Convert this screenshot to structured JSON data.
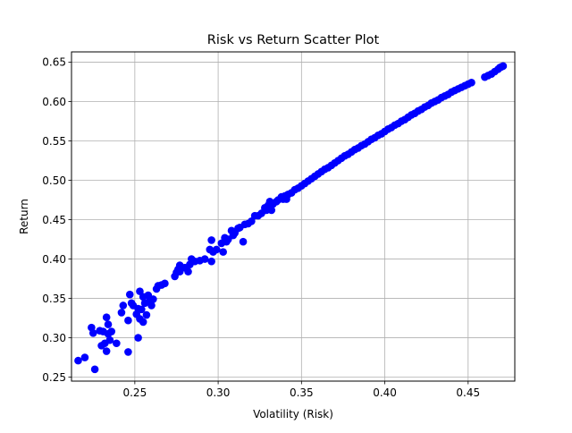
{
  "chart_data": {
    "type": "scatter",
    "title": "Risk vs Return Scatter Plot",
    "xlabel": "Volatility (Risk)",
    "ylabel": "Return",
    "xlim": [
      0.212,
      0.478
    ],
    "ylim": [
      0.245,
      0.663
    ],
    "xticks": [
      0.25,
      0.3,
      0.35,
      0.4,
      0.45
    ],
    "xtick_labels": [
      "0.25",
      "0.30",
      "0.35",
      "0.40",
      "0.45"
    ],
    "yticks": [
      0.25,
      0.3,
      0.35,
      0.4,
      0.45,
      0.5,
      0.55,
      0.6,
      0.65
    ],
    "ytick_labels": [
      "0.25",
      "0.30",
      "0.35",
      "0.40",
      "0.45",
      "0.50",
      "0.55",
      "0.60",
      "0.65"
    ],
    "grid": true,
    "marker_color": "#0000ff",
    "points": [
      [
        0.216,
        0.271
      ],
      [
        0.22,
        0.275
      ],
      [
        0.224,
        0.313
      ],
      [
        0.225,
        0.306
      ],
      [
        0.226,
        0.26
      ],
      [
        0.229,
        0.309
      ],
      [
        0.23,
        0.29
      ],
      [
        0.231,
        0.308
      ],
      [
        0.232,
        0.293
      ],
      [
        0.233,
        0.326
      ],
      [
        0.233,
        0.283
      ],
      [
        0.234,
        0.317
      ],
      [
        0.234,
        0.305
      ],
      [
        0.235,
        0.297
      ],
      [
        0.236,
        0.308
      ],
      [
        0.239,
        0.293
      ],
      [
        0.242,
        0.332
      ],
      [
        0.243,
        0.341
      ],
      [
        0.246,
        0.282
      ],
      [
        0.246,
        0.322
      ],
      [
        0.247,
        0.355
      ],
      [
        0.248,
        0.344
      ],
      [
        0.249,
        0.341
      ],
      [
        0.251,
        0.33
      ],
      [
        0.252,
        0.3
      ],
      [
        0.252,
        0.337
      ],
      [
        0.253,
        0.359
      ],
      [
        0.253,
        0.324
      ],
      [
        0.254,
        0.336
      ],
      [
        0.255,
        0.32
      ],
      [
        0.255,
        0.352
      ],
      [
        0.256,
        0.344
      ],
      [
        0.257,
        0.329
      ],
      [
        0.258,
        0.354
      ],
      [
        0.259,
        0.347
      ],
      [
        0.26,
        0.341
      ],
      [
        0.261,
        0.349
      ],
      [
        0.263,
        0.362
      ],
      [
        0.264,
        0.366
      ],
      [
        0.266,
        0.367
      ],
      [
        0.268,
        0.369
      ],
      [
        0.274,
        0.378
      ],
      [
        0.275,
        0.383
      ],
      [
        0.276,
        0.387
      ],
      [
        0.277,
        0.384
      ],
      [
        0.277,
        0.392
      ],
      [
        0.28,
        0.389
      ],
      [
        0.282,
        0.384
      ],
      [
        0.283,
        0.393
      ],
      [
        0.284,
        0.4
      ],
      [
        0.286,
        0.397
      ],
      [
        0.289,
        0.398
      ],
      [
        0.292,
        0.4
      ],
      [
        0.295,
        0.412
      ],
      [
        0.296,
        0.424
      ],
      [
        0.296,
        0.397
      ],
      [
        0.297,
        0.409
      ],
      [
        0.299,
        0.412
      ],
      [
        0.302,
        0.42
      ],
      [
        0.303,
        0.409
      ],
      [
        0.304,
        0.427
      ],
      [
        0.305,
        0.422
      ],
      [
        0.306,
        0.425
      ],
      [
        0.308,
        0.436
      ],
      [
        0.309,
        0.43
      ],
      [
        0.31,
        0.433
      ],
      [
        0.312,
        0.439
      ],
      [
        0.313,
        0.44
      ],
      [
        0.315,
        0.422
      ],
      [
        0.316,
        0.444
      ],
      [
        0.318,
        0.445
      ],
      [
        0.32,
        0.448
      ],
      [
        0.322,
        0.455
      ],
      [
        0.324,
        0.455
      ],
      [
        0.326,
        0.458
      ],
      [
        0.328,
        0.465
      ],
      [
        0.329,
        0.462
      ],
      [
        0.33,
        0.468
      ],
      [
        0.331,
        0.473
      ],
      [
        0.332,
        0.462
      ],
      [
        0.333,
        0.47
      ],
      [
        0.335,
        0.473
      ],
      [
        0.336,
        0.475
      ],
      [
        0.338,
        0.479
      ],
      [
        0.339,
        0.476
      ],
      [
        0.34,
        0.48
      ],
      [
        0.341,
        0.476
      ],
      [
        0.342,
        0.482
      ],
      [
        0.344,
        0.484
      ],
      [
        0.346,
        0.488
      ],
      [
        0.348,
        0.49
      ],
      [
        0.35,
        0.493
      ],
      [
        0.352,
        0.496
      ],
      [
        0.354,
        0.499
      ],
      [
        0.356,
        0.502
      ],
      [
        0.358,
        0.505
      ],
      [
        0.36,
        0.508
      ],
      [
        0.362,
        0.511
      ],
      [
        0.364,
        0.514
      ],
      [
        0.366,
        0.516
      ],
      [
        0.368,
        0.519
      ],
      [
        0.37,
        0.522
      ],
      [
        0.372,
        0.525
      ],
      [
        0.374,
        0.528
      ],
      [
        0.376,
        0.531
      ],
      [
        0.378,
        0.533
      ],
      [
        0.38,
        0.536
      ],
      [
        0.382,
        0.539
      ],
      [
        0.384,
        0.541
      ],
      [
        0.386,
        0.544
      ],
      [
        0.388,
        0.546
      ],
      [
        0.39,
        0.549
      ],
      [
        0.392,
        0.552
      ],
      [
        0.394,
        0.554
      ],
      [
        0.396,
        0.557
      ],
      [
        0.398,
        0.559
      ],
      [
        0.4,
        0.562
      ],
      [
        0.402,
        0.565
      ],
      [
        0.404,
        0.567
      ],
      [
        0.406,
        0.57
      ],
      [
        0.408,
        0.572
      ],
      [
        0.41,
        0.575
      ],
      [
        0.412,
        0.577
      ],
      [
        0.414,
        0.58
      ],
      [
        0.416,
        0.583
      ],
      [
        0.418,
        0.585
      ],
      [
        0.42,
        0.588
      ],
      [
        0.422,
        0.59
      ],
      [
        0.424,
        0.593
      ],
      [
        0.426,
        0.595
      ],
      [
        0.428,
        0.598
      ],
      [
        0.43,
        0.6
      ],
      [
        0.432,
        0.602
      ],
      [
        0.434,
        0.605
      ],
      [
        0.436,
        0.607
      ],
      [
        0.438,
        0.609
      ],
      [
        0.44,
        0.612
      ],
      [
        0.442,
        0.614
      ],
      [
        0.444,
        0.616
      ],
      [
        0.446,
        0.618
      ],
      [
        0.448,
        0.62
      ],
      [
        0.45,
        0.622
      ],
      [
        0.452,
        0.624
      ],
      [
        0.46,
        0.631
      ],
      [
        0.462,
        0.633
      ],
      [
        0.464,
        0.635
      ],
      [
        0.466,
        0.638
      ],
      [
        0.468,
        0.641
      ],
      [
        0.469,
        0.643
      ],
      [
        0.47,
        0.644
      ],
      [
        0.471,
        0.645
      ]
    ]
  }
}
